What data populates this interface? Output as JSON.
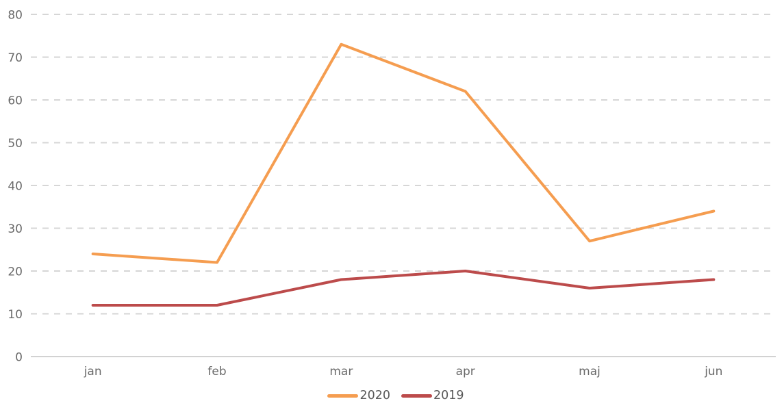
{
  "chart_data": {
    "type": "line",
    "title": "",
    "xlabel": "",
    "ylabel": "",
    "categories": [
      "jan",
      "feb",
      "mar",
      "apr",
      "maj",
      "jun"
    ],
    "series": [
      {
        "name": "2020",
        "color": "#F59D50",
        "values": [
          24,
          22,
          73,
          62,
          27,
          34
        ]
      },
      {
        "name": "2019",
        "color": "#BC4B4B",
        "values": [
          12,
          12,
          18,
          20,
          16,
          18
        ]
      }
    ],
    "ylim": [
      0,
      80
    ],
    "ytick_step": 10,
    "ytick_labels": [
      "0",
      "10",
      "20",
      "30",
      "40",
      "50",
      "60",
      "70",
      "80"
    ],
    "grid": "horizontal-dashed",
    "gridline_color": "#d6d6d6",
    "axis_line_color": "#d2d2d2",
    "tick_label_color": "#6a6a6a",
    "legend_position": "bottom",
    "legend_text_color": "#595959",
    "background_color": "#ffffff",
    "line_width": 4
  }
}
